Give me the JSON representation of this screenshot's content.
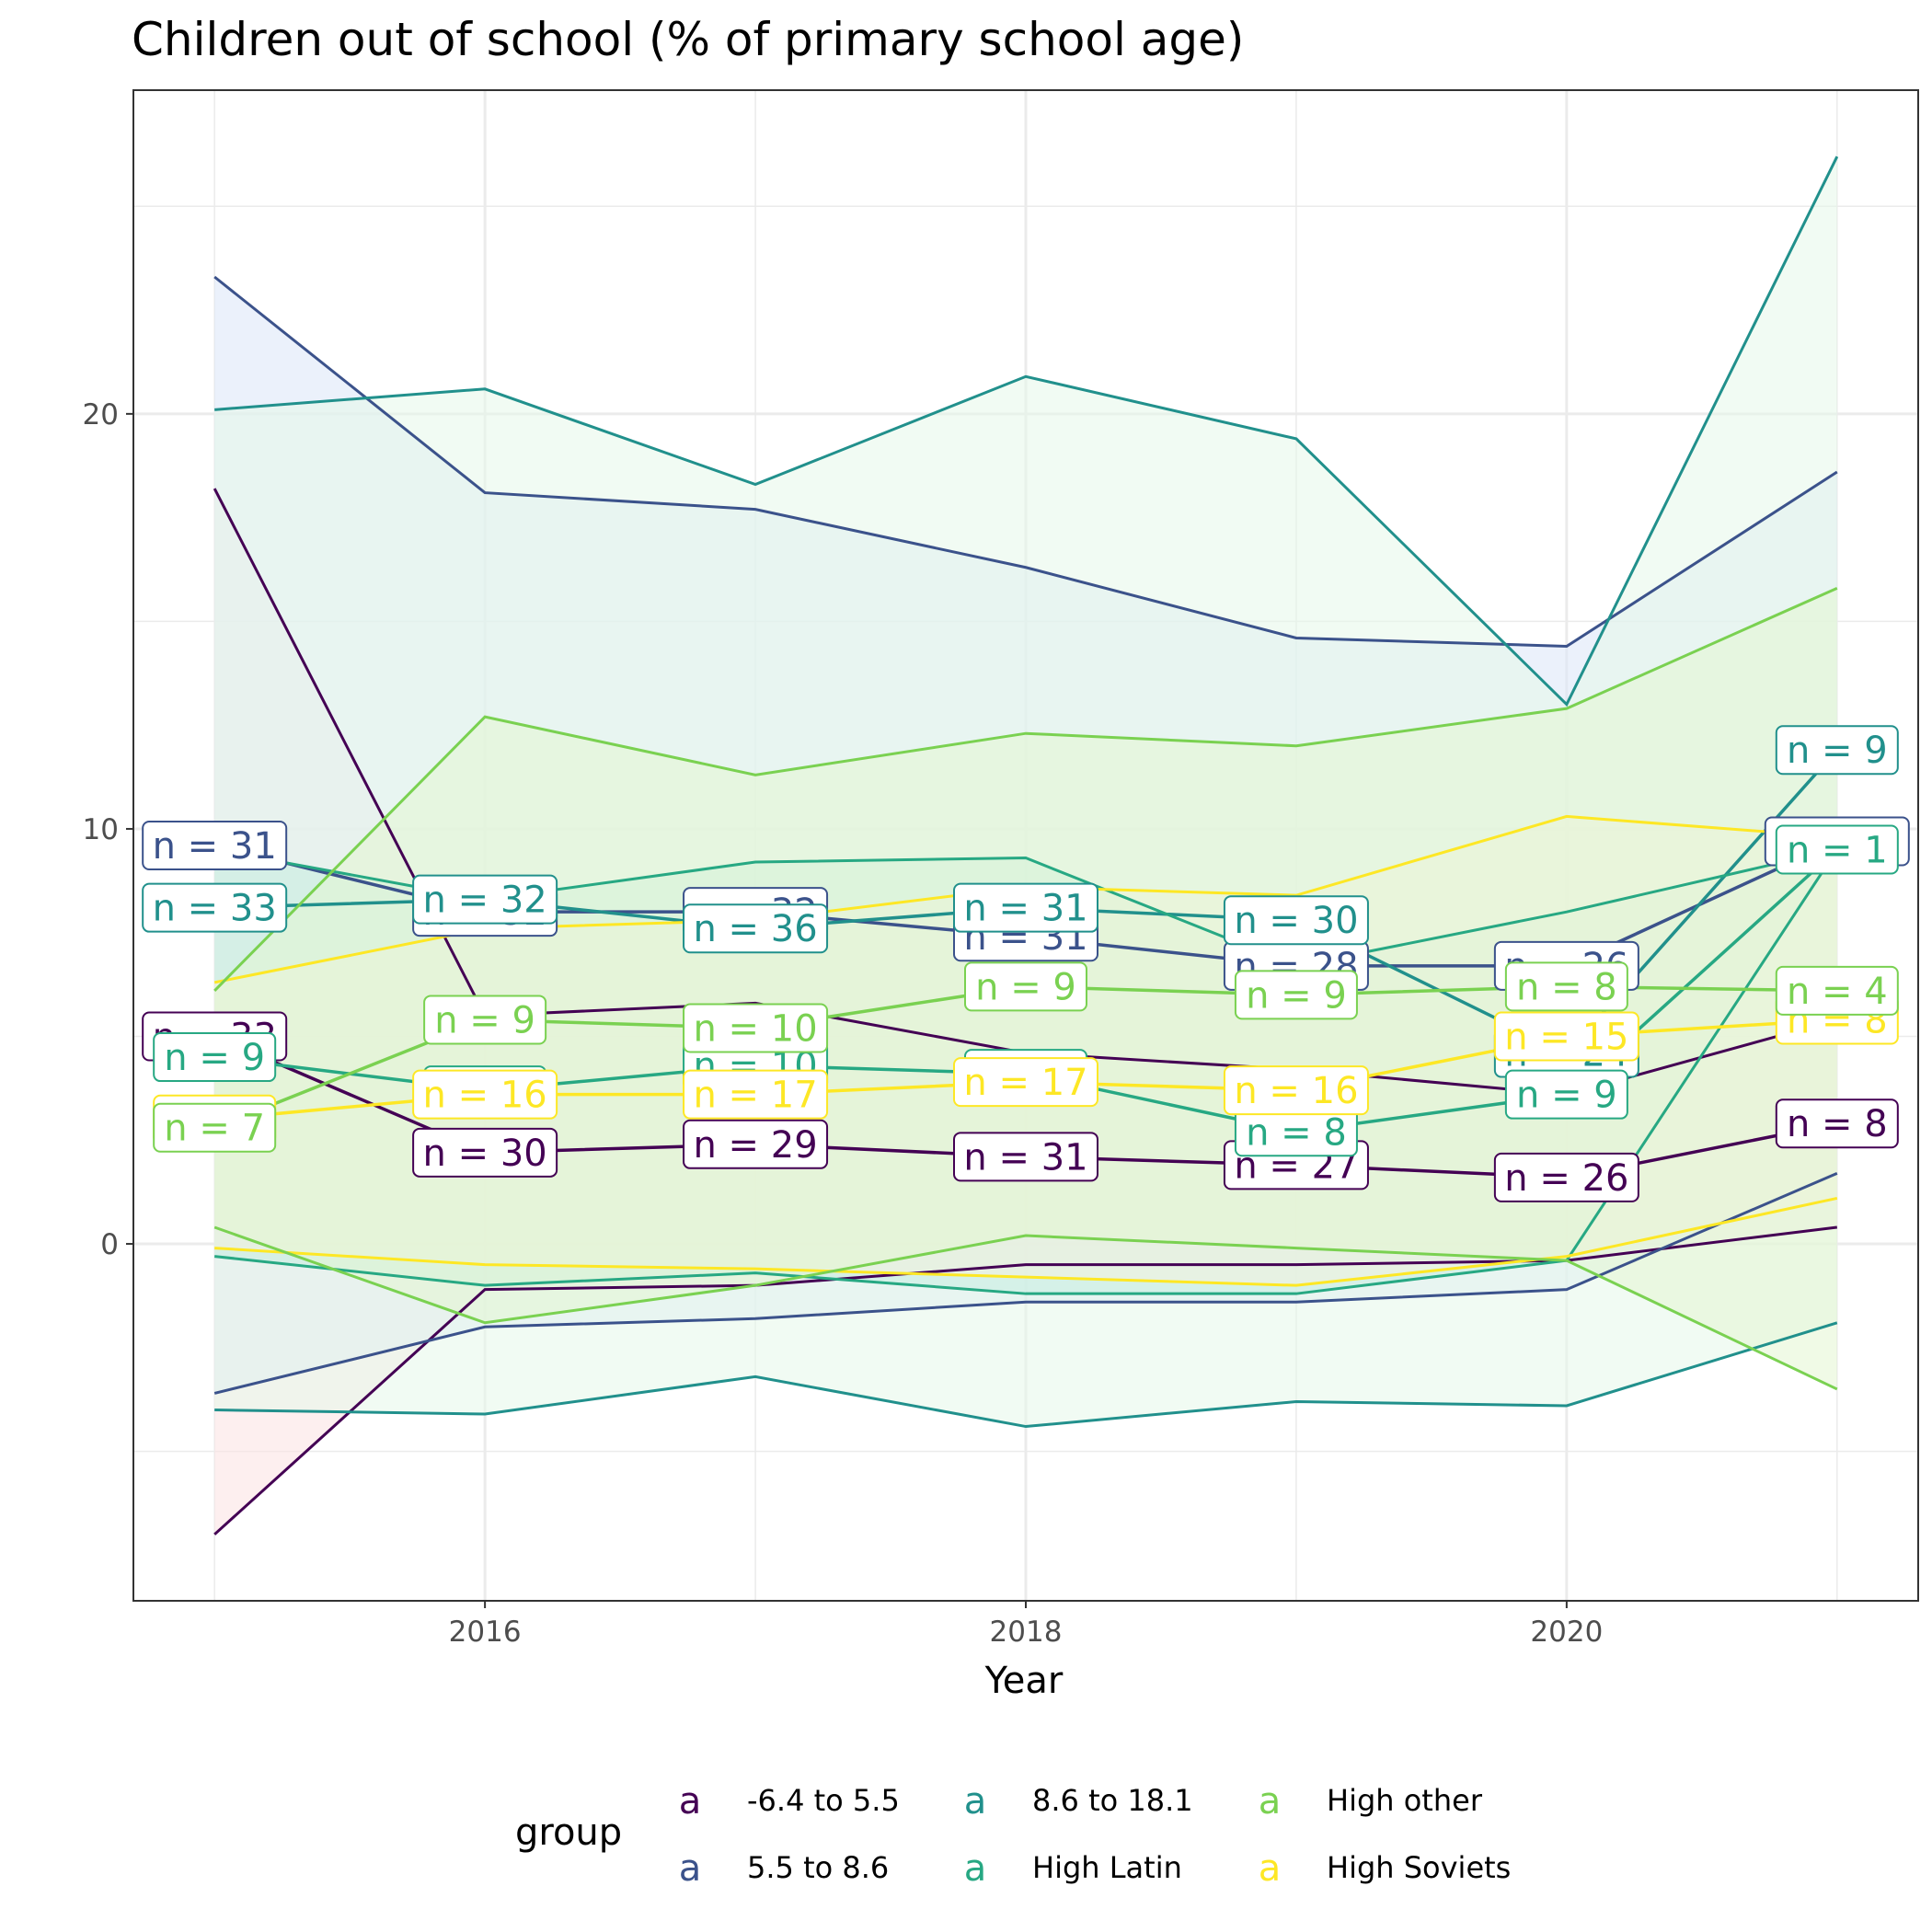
{
  "chart_data": {
    "type": "line",
    "title": "Children out of school (% of primary school age)",
    "xlabel": "Year",
    "ylabel": "",
    "xlim": [
      2014.7,
      2021.3
    ],
    "ylim": [
      -8.6,
      27.8
    ],
    "x_ticks": [
      2016,
      2018,
      2020
    ],
    "y_ticks": [
      0,
      10,
      20
    ],
    "grid": true,
    "legend": {
      "title": "group",
      "position": "bottom",
      "key_glyph": "a",
      "entries": [
        "-6.4 to 5.5",
        "5.5 to 8.6",
        "8.6 to 18.1",
        "High Latin",
        "High Soviets",
        "High other"
      ]
    },
    "series": [
      {
        "name": "-6.4 to 5.5",
        "color": "#440154",
        "band_fill": "#fbe1e1",
        "x": [
          2015,
          2016,
          2017,
          2018,
          2019,
          2020,
          2021
        ],
        "mean": [
          5.0,
          2.2,
          2.4,
          2.1,
          1.9,
          1.6,
          2.9
        ],
        "upper": [
          18.2,
          5.5,
          5.8,
          4.6,
          4.2,
          3.6,
          5.4
        ],
        "lower": [
          -7.0,
          -1.1,
          -1.0,
          -0.5,
          -0.5,
          -0.4,
          0.4
        ],
        "labels": [
          "n = 33",
          "n = 30",
          "n = 29",
          "n = 31",
          "n = 27",
          "n = 26",
          "n = 8"
        ]
      },
      {
        "name": "5.5 to 8.6",
        "color": "#3b528b",
        "band_fill": "#dbe6f7",
        "x": [
          2015,
          2016,
          2017,
          2018,
          2019,
          2020,
          2021
        ],
        "mean": [
          9.6,
          8.0,
          8.0,
          7.4,
          6.7,
          6.7,
          9.7
        ],
        "upper": [
          23.3,
          18.1,
          17.7,
          16.3,
          14.6,
          14.4,
          18.6
        ],
        "lower": [
          -3.6,
          -2.0,
          -1.8,
          -1.4,
          -1.4,
          -1.1,
          1.7
        ],
        "labels": [
          "n = 31",
          "n = 32",
          "n = 32",
          "n = 31",
          "n = 28",
          "n = 26",
          "n = 11"
        ]
      },
      {
        "name": "8.6 to 18.1",
        "color": "#21908c",
        "band_fill": "#e6f7e9",
        "x": [
          2015,
          2016,
          2017,
          2018,
          2019,
          2020,
          2021
        ],
        "mean": [
          8.1,
          8.3,
          7.6,
          8.1,
          7.8,
          4.6,
          11.9
        ],
        "upper": [
          20.1,
          20.6,
          18.3,
          20.9,
          19.4,
          13.0,
          26.2
        ],
        "lower": [
          -4.0,
          -4.1,
          -3.2,
          -4.4,
          -3.8,
          -3.9,
          -1.9
        ],
        "labels": [
          "n = 33",
          "n = 32",
          "n = 36",
          "n = 31",
          "n = 30",
          "n = 24",
          "n = 9"
        ]
      },
      {
        "name": "High Latin",
        "color": "#27a883",
        "band_fill": "#c5ede0",
        "x": [
          2015,
          2016,
          2017,
          2018,
          2019,
          2020,
          2021
        ],
        "mean": [
          4.5,
          3.7,
          4.3,
          4.1,
          2.7,
          3.6,
          9.5
        ],
        "upper": [
          9.5,
          8.3,
          9.2,
          9.3,
          6.7,
          8.0,
          9.5
        ],
        "lower": [
          -0.3,
          -1.0,
          -0.7,
          -1.2,
          -1.2,
          -0.4,
          9.5
        ],
        "labels": [
          "n = 9",
          "n = 9",
          "n = 10",
          "n = 9",
          "n = 8",
          "n = 9",
          "n = 1"
        ]
      },
      {
        "name": "High Soviets",
        "color": "#fde725",
        "band_fill": "#f6f3df",
        "x": [
          2015,
          2016,
          2017,
          2018,
          2019,
          2020,
          2021
        ],
        "mean": [
          3.0,
          3.6,
          3.6,
          3.9,
          3.7,
          5.0,
          5.4
        ],
        "upper": [
          6.3,
          7.6,
          7.8,
          8.6,
          8.4,
          10.3,
          9.8
        ],
        "lower": [
          -0.1,
          -0.5,
          -0.6,
          -0.8,
          -1.0,
          -0.3,
          1.1
        ],
        "labels": [
          "n = 7",
          "n = 16",
          "n = 17",
          "n = 17",
          "n = 16",
          "n = 15",
          "n = 8"
        ]
      },
      {
        "name": "High other",
        "color": "#7ad151",
        "band_fill": "#e4f5d2",
        "x": [
          2015,
          2016,
          2017,
          2018,
          2019,
          2020,
          2021
        ],
        "mean": [
          2.8,
          5.4,
          5.2,
          6.2,
          6.0,
          6.2,
          6.1
        ],
        "upper": [
          6.1,
          12.7,
          11.3,
          12.3,
          12.0,
          12.9,
          15.8
        ],
        "lower": [
          0.4,
          -1.9,
          -1.0,
          0.2,
          -0.1,
          -0.4,
          -3.5
        ],
        "labels": [
          "n = 7",
          "n = 9",
          "n = 10",
          "n = 9",
          "n = 9",
          "n = 8",
          "n = 4"
        ]
      }
    ]
  }
}
